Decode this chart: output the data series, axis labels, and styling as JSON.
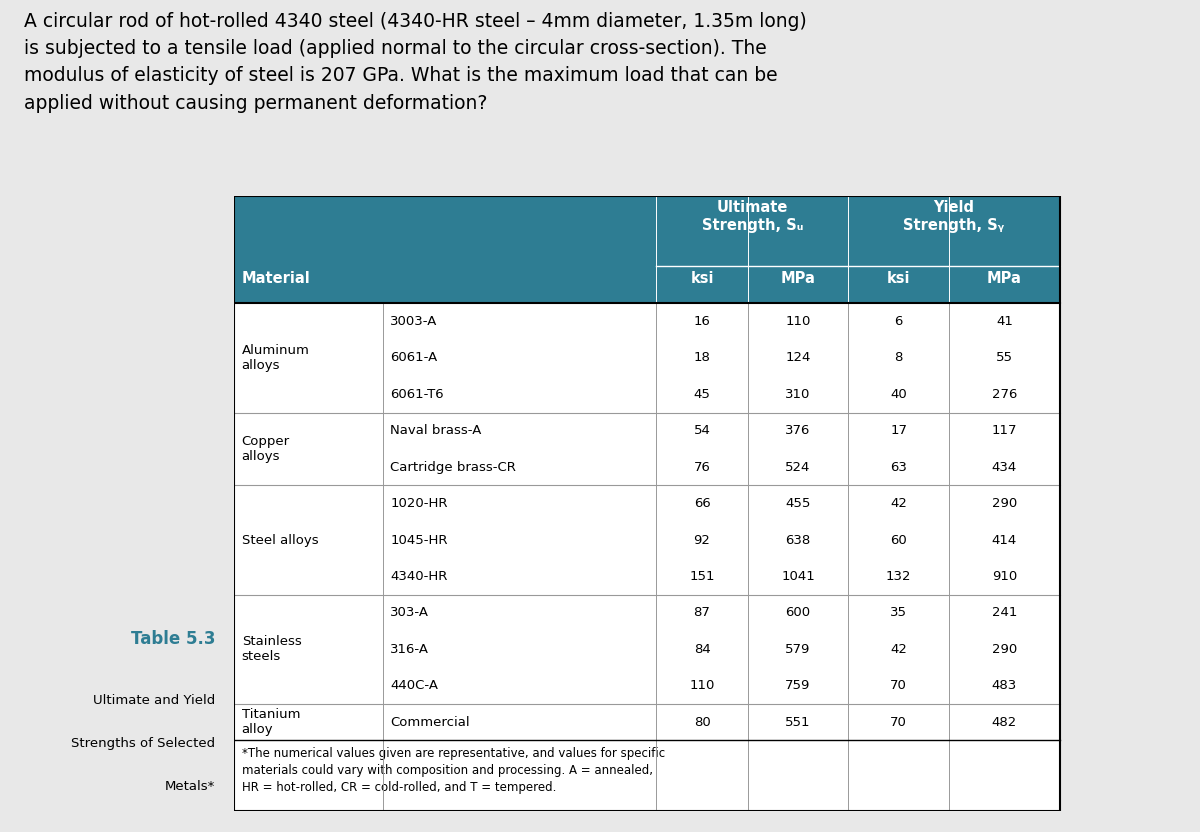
{
  "question_text": "A circular rod of hot-rolled 4340 steel (4340-HR steel – 4mm diameter, 1.35m long)\nis subjected to a tensile load (applied normal to the circular cross-section). The\nmodulus of elasticity of steel is 207 GPa. What is the maximum load that can be\napplied without causing permanent deformation?",
  "table_caption_bold": "Table 5.3",
  "table_caption_line1": "Ultimate and Yield",
  "table_caption_line2": "Strengths of Selected",
  "table_caption_line3": "Metals*",
  "header_bg_color": "#2E7D93",
  "header_text_color": "#FFFFFF",
  "table_bg_color": "#FFFFFF",
  "caption_color": "#2E7D93",
  "bg_color": "#E8E8E8",
  "footnote": "*The numerical values given are representative, and values for specific\nmaterials could vary with composition and processing. A = annealed,\nHR = hot-rolled, CR = cold-rolled, and T = tempered.",
  "rows": [
    {
      "group": "Aluminum\nalloys",
      "subrows": [
        {
          "material": "3003-A",
          "su_ksi": "16",
          "su_mpa": "110",
          "sy_ksi": "6",
          "sy_mpa": "41"
        },
        {
          "material": "6061-A",
          "su_ksi": "18",
          "su_mpa": "124",
          "sy_ksi": "8",
          "sy_mpa": "55"
        },
        {
          "material": "6061-T6",
          "su_ksi": "45",
          "su_mpa": "310",
          "sy_ksi": "40",
          "sy_mpa": "276"
        }
      ]
    },
    {
      "group": "Copper\nalloys",
      "subrows": [
        {
          "material": "Naval brass-A",
          "su_ksi": "54",
          "su_mpa": "376",
          "sy_ksi": "17",
          "sy_mpa": "117"
        },
        {
          "material": "Cartridge brass-CR",
          "su_ksi": "76",
          "su_mpa": "524",
          "sy_ksi": "63",
          "sy_mpa": "434"
        }
      ]
    },
    {
      "group": "Steel alloys",
      "subrows": [
        {
          "material": "1020-HR",
          "su_ksi": "66",
          "su_mpa": "455",
          "sy_ksi": "42",
          "sy_mpa": "290"
        },
        {
          "material": "1045-HR",
          "su_ksi": "92",
          "su_mpa": "638",
          "sy_ksi": "60",
          "sy_mpa": "414"
        },
        {
          "material": "4340-HR",
          "su_ksi": "151",
          "su_mpa": "1041",
          "sy_ksi": "132",
          "sy_mpa": "910"
        }
      ]
    },
    {
      "group": "Stainless\nsteels",
      "subrows": [
        {
          "material": "303-A",
          "su_ksi": "87",
          "su_mpa": "600",
          "sy_ksi": "35",
          "sy_mpa": "241"
        },
        {
          "material": "316-A",
          "su_ksi": "84",
          "su_mpa": "579",
          "sy_ksi": "42",
          "sy_mpa": "290"
        },
        {
          "material": "440C-A",
          "su_ksi": "110",
          "su_mpa": "759",
          "sy_ksi": "70",
          "sy_mpa": "483"
        }
      ]
    },
    {
      "group": "Titanium\nalloy",
      "subrows": [
        {
          "material": "Commercial",
          "su_ksi": "80",
          "su_mpa": "551",
          "sy_ksi": "70",
          "sy_mpa": "482"
        }
      ]
    }
  ]
}
